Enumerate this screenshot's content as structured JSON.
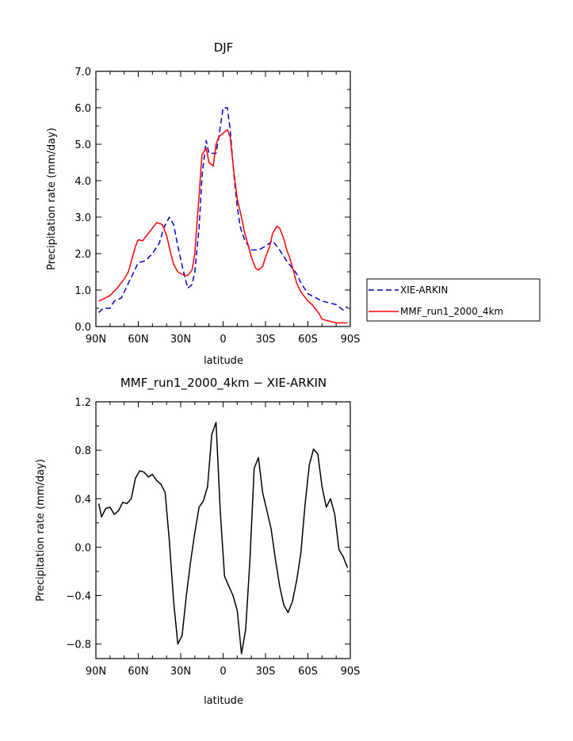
{
  "chart_data": [
    {
      "type": "line",
      "title": "DJF",
      "xlabel": "latitude",
      "ylabel": "Precipitation rate (mm/day)",
      "xlim": [
        90,
        -90
      ],
      "ylim": [
        0,
        7
      ],
      "x_tick_values": [
        90,
        60,
        30,
        0,
        -30,
        -60,
        -90
      ],
      "x_tick_labels": [
        "90N",
        "60N",
        "30N",
        "0",
        "30S",
        "60S",
        "90S"
      ],
      "y_tick_values": [
        0,
        1,
        2,
        3,
        4,
        5,
        6,
        7
      ],
      "y_tick_labels": [
        "0.0",
        "1.0",
        "2.0",
        "3.0",
        "4.0",
        "5.0",
        "6.0",
        "7.0"
      ],
      "legend": "right",
      "series": [
        {
          "name": "XIE-ARKIN",
          "color": "#0000cc",
          "dash": "dashed",
          "x": [
            88,
            85,
            80,
            77,
            72,
            70,
            65,
            60,
            55,
            50,
            45,
            42,
            38,
            35,
            32,
            28,
            25,
            22,
            20,
            17,
            15,
            12,
            10,
            5,
            3,
            0,
            -3,
            -5,
            -8,
            -10,
            -12,
            -15,
            -18,
            -20,
            -22,
            -25,
            -30,
            -35,
            -40,
            -45,
            -50,
            -52,
            -55,
            -60,
            -65,
            -70,
            -75,
            -80,
            -85,
            -88
          ],
          "y": [
            0.38,
            0.5,
            0.5,
            0.7,
            0.78,
            0.95,
            1.35,
            1.75,
            1.8,
            2.0,
            2.3,
            2.7,
            3.0,
            2.8,
            2.2,
            1.5,
            1.05,
            1.15,
            1.5,
            2.7,
            4.1,
            5.1,
            4.75,
            4.75,
            5.2,
            6.0,
            6.0,
            5.4,
            4.0,
            3.3,
            2.75,
            2.4,
            2.2,
            2.1,
            2.1,
            2.1,
            2.2,
            2.35,
            2.1,
            1.8,
            1.55,
            1.45,
            1.2,
            0.9,
            0.8,
            0.7,
            0.65,
            0.6,
            0.45,
            0.55
          ]
        },
        {
          "name": "MMF_run1_2000_4km",
          "color": "#ff0000",
          "dash": "solid",
          "x": [
            88,
            85,
            80,
            75,
            70,
            67,
            62,
            60,
            57,
            52,
            47,
            43,
            40,
            37,
            35,
            32,
            30,
            27,
            25,
            22,
            20,
            17,
            15,
            12,
            10,
            7,
            5,
            3,
            0,
            -3,
            -5,
            -8,
            -10,
            -13,
            -15,
            -18,
            -20,
            -23,
            -25,
            -28,
            -30,
            -33,
            -35,
            -38,
            -40,
            -43,
            -45,
            -47,
            -50,
            -52,
            -55,
            -58,
            -60,
            -63,
            -65,
            -68,
            -70,
            -75,
            -80,
            -85,
            -88
          ],
          "y": [
            0.7,
            0.75,
            0.85,
            1.05,
            1.3,
            1.5,
            2.2,
            2.38,
            2.35,
            2.6,
            2.85,
            2.8,
            2.5,
            2.0,
            1.7,
            1.5,
            1.45,
            1.4,
            1.4,
            1.55,
            2.0,
            3.6,
            4.7,
            4.9,
            4.5,
            4.4,
            5.0,
            5.2,
            5.3,
            5.4,
            5.2,
            4.1,
            3.5,
            3.0,
            2.6,
            2.2,
            1.9,
            1.6,
            1.55,
            1.65,
            1.9,
            2.2,
            2.55,
            2.75,
            2.7,
            2.4,
            2.1,
            1.9,
            1.5,
            1.2,
            0.95,
            0.8,
            0.7,
            0.6,
            0.5,
            0.35,
            0.2,
            0.15,
            0.1,
            0.1,
            0.1
          ]
        }
      ]
    },
    {
      "type": "line",
      "title": "MMF_run1_2000_4km − XIE-ARKIN",
      "xlabel": "latitude",
      "ylabel": "Precipitation rate (mm/day)",
      "xlim": [
        90,
        -90
      ],
      "ylim": [
        -0.92,
        1.2
      ],
      "x_tick_values": [
        90,
        60,
        30,
        0,
        -30,
        -60,
        -90
      ],
      "x_tick_labels": [
        "90N",
        "60N",
        "30N",
        "0",
        "30S",
        "60S",
        "90S"
      ],
      "y_tick_values": [
        -0.8,
        -0.4,
        0.0,
        0.4,
        0.8,
        1.2
      ],
      "y_tick_labels": [
        "−0.8",
        "−0.4",
        "0.0",
        "0.4",
        "0.8",
        "1.2"
      ],
      "series": [
        {
          "color": "#000000",
          "dash": "solid",
          "x": [
            88,
            86,
            83,
            80,
            77,
            74,
            71,
            68,
            65,
            62,
            59,
            56,
            53,
            50,
            47,
            44,
            41,
            38,
            35,
            32,
            29,
            26,
            23,
            20,
            17,
            14,
            11,
            8,
            5,
            2,
            -1,
            -4,
            -7,
            -10,
            -13,
            -16,
            -19,
            -22,
            -25,
            -28,
            -31,
            -34,
            -37,
            -40,
            -43,
            -46,
            -49,
            -52,
            -55,
            -58,
            -61,
            -64,
            -67,
            -70,
            -73,
            -76,
            -79,
            -82,
            -85,
            -88
          ],
          "y": [
            0.36,
            0.25,
            0.32,
            0.33,
            0.27,
            0.3,
            0.37,
            0.36,
            0.4,
            0.57,
            0.63,
            0.62,
            0.58,
            0.6,
            0.55,
            0.52,
            0.45,
            0.05,
            -0.45,
            -0.8,
            -0.73,
            -0.4,
            -0.12,
            0.12,
            0.33,
            0.38,
            0.5,
            0.93,
            1.03,
            0.3,
            -0.24,
            -0.32,
            -0.4,
            -0.52,
            -0.88,
            -0.68,
            -0.1,
            0.65,
            0.74,
            0.45,
            0.3,
            0.15,
            -0.1,
            -0.32,
            -0.48,
            -0.54,
            -0.45,
            -0.28,
            -0.05,
            0.35,
            0.68,
            0.81,
            0.77,
            0.5,
            0.33,
            0.4,
            0.27,
            -0.02,
            -0.08,
            -0.17
          ]
        }
      ]
    }
  ]
}
